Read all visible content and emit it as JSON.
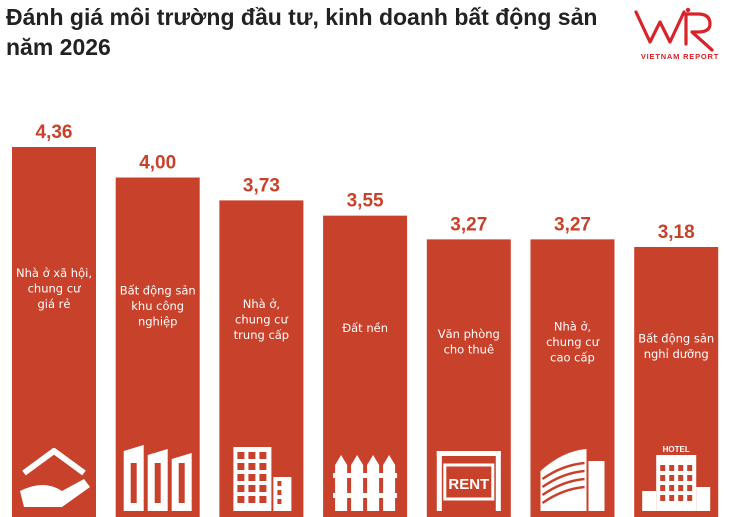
{
  "title": {
    "line1": "Đánh giá môi trường đầu tư, kinh doanh bất động sản",
    "line2": "năm 2026"
  },
  "logo": {
    "mark": "VNR",
    "tagline": "VIETNAM REPORT",
    "colors": {
      "primary": "#d8232a"
    }
  },
  "colors": {
    "bar": "#c8412a",
    "value_text": "#c8412a",
    "title": "#222222"
  },
  "chart_data": {
    "type": "bar",
    "categories": [
      [
        "Nhà ở xã hội,",
        "chung cư",
        "giá rẻ"
      ],
      [
        "Bất động sản",
        "khu công",
        "nghiệp"
      ],
      [
        "Nhà ở,",
        "chung cư",
        "trung cấp"
      ],
      [
        "Đất nền"
      ],
      [
        "Văn phòng",
        "cho thuê"
      ],
      [
        "Nhà ở,",
        "chung cư",
        "cao cấp"
      ],
      [
        "Bất động sản",
        "nghỉ dưỡng"
      ]
    ],
    "values": [
      4.36,
      4.0,
      3.73,
      3.55,
      3.27,
      3.27,
      3.18
    ],
    "value_labels": [
      "4,36",
      "4,00",
      "3,73",
      "3,55",
      "3,27",
      "3,27",
      "3,18"
    ],
    "icons": [
      "house-hand-icon",
      "industrial-buildings-icon",
      "apartment-building-icon",
      "fence-land-icon",
      "rent-sign-icon",
      "curved-tower-icon",
      "hotel-building-icon"
    ],
    "icon_texts": {
      "rent-sign-icon": "RENT",
      "hotel-building-icon": "HOTEL"
    },
    "ylim": [
      0,
      4.36
    ],
    "grid": false,
    "legend": "none"
  }
}
